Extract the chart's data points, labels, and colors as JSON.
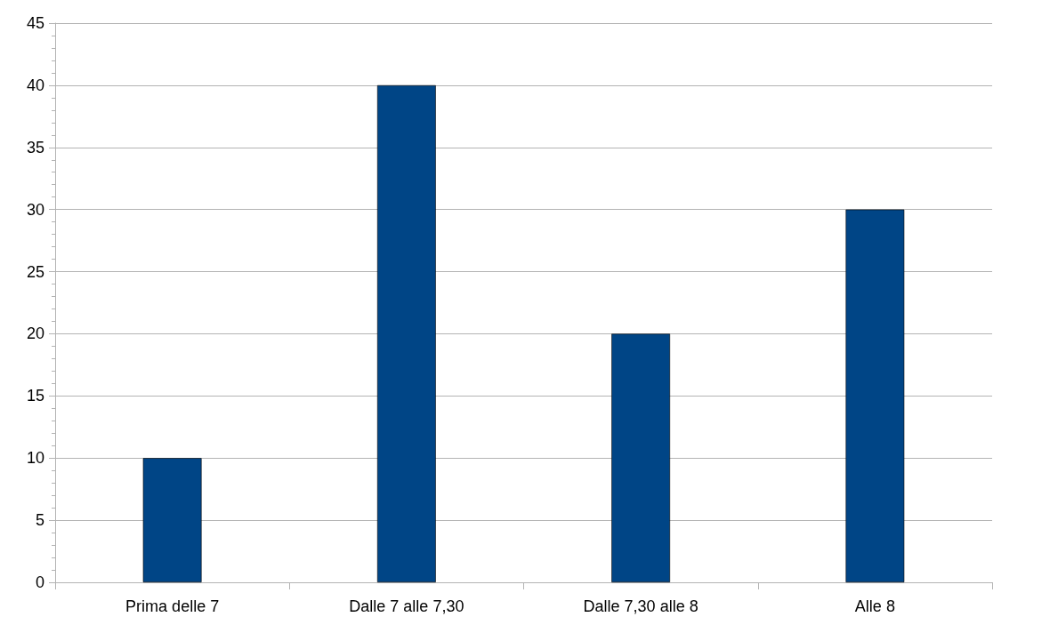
{
  "chart_data": {
    "type": "bar",
    "categories": [
      "Prima delle 7",
      "Dalle 7 alle 7,30",
      "Dalle 7,30 alle 8",
      "Alle 8"
    ],
    "values": [
      10,
      40,
      20,
      30
    ],
    "color": "#004586",
    "ylim": [
      0,
      45
    ],
    "yticks": [
      0,
      5,
      10,
      15,
      20,
      25,
      30,
      35,
      40,
      45
    ],
    "grid": "y"
  }
}
